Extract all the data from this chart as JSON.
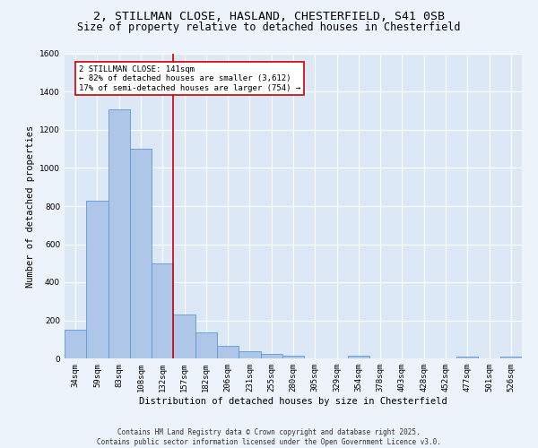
{
  "title_line1": "2, STILLMAN CLOSE, HASLAND, CHESTERFIELD, S41 0SB",
  "title_line2": "Size of property relative to detached houses in Chesterfield",
  "xlabel": "Distribution of detached houses by size in Chesterfield",
  "ylabel": "Number of detached properties",
  "categories": [
    "34sqm",
    "59sqm",
    "83sqm",
    "108sqm",
    "132sqm",
    "157sqm",
    "182sqm",
    "206sqm",
    "231sqm",
    "255sqm",
    "280sqm",
    "305sqm",
    "329sqm",
    "354sqm",
    "378sqm",
    "403sqm",
    "428sqm",
    "452sqm",
    "477sqm",
    "501sqm",
    "526sqm"
  ],
  "values": [
    150,
    830,
    1310,
    1100,
    500,
    230,
    135,
    65,
    38,
    25,
    12,
    0,
    0,
    15,
    0,
    0,
    0,
    0,
    10,
    0,
    10
  ],
  "bar_color": "#aec6e8",
  "bar_edge_color": "#5b9bd5",
  "background_color": "#dce8f5",
  "fig_background_color": "#edf3fb",
  "grid_color": "#ffffff",
  "vline_x": 4.5,
  "vline_color": "#cc0000",
  "annotation_text": "2 STILLMAN CLOSE: 141sqm\n← 82% of detached houses are smaller (3,612)\n17% of semi-detached houses are larger (754) →",
  "annotation_box_color": "#cc0000",
  "ylim": [
    0,
    1600
  ],
  "yticks": [
    0,
    200,
    400,
    600,
    800,
    1000,
    1200,
    1400,
    1600
  ],
  "footer": "Contains HM Land Registry data © Crown copyright and database right 2025.\nContains public sector information licensed under the Open Government Licence v3.0.",
  "title_fontsize": 9.5,
  "subtitle_fontsize": 8.5,
  "axis_label_fontsize": 7.5,
  "tick_fontsize": 6.5,
  "annotation_fontsize": 6.5,
  "footer_fontsize": 5.5
}
